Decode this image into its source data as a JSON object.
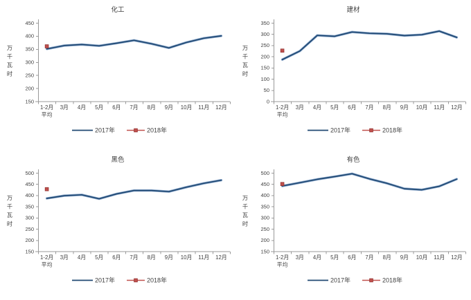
{
  "page": {
    "background": "#ffffff"
  },
  "colors": {
    "series_2017": "#1f4872",
    "series_2017_halo": "#6e92bf",
    "series_2018": "#c0504d",
    "series_2018_border": "#943634",
    "axis": "#999999",
    "text": "#3f3f3f"
  },
  "chart_data": [
    {
      "type": "line",
      "title": "化工",
      "ylabel": "万千瓦时",
      "xlabel": "",
      "grid": false,
      "legend_position": "bottom",
      "categories": [
        "1-2月",
        "3月",
        "4月",
        "5月",
        "6月",
        "7月",
        "8月",
        "9月",
        "10月",
        "11月",
        "12月"
      ],
      "first_category_line2": "平均",
      "ylim": [
        150,
        450
      ],
      "yticks": [
        450,
        400,
        350,
        300,
        250,
        200,
        150
      ],
      "series": [
        {
          "name": "2017年",
          "values": [
            350,
            363,
            367,
            362,
            372,
            383,
            370,
            354,
            375,
            391,
            400
          ]
        },
        {
          "name": "2018年",
          "values": [
            360
          ]
        }
      ]
    },
    {
      "type": "line",
      "title": "建材",
      "ylabel": "万千瓦时",
      "xlabel": "",
      "grid": false,
      "legend_position": "bottom",
      "categories": [
        "1-2月",
        "3月",
        "4月",
        "5月",
        "6月",
        "7月",
        "8月",
        "9月",
        "10月",
        "11月",
        "12月"
      ],
      "first_category_line2": "平均",
      "ylim": [
        0,
        350
      ],
      "yticks": [
        350,
        300,
        250,
        200,
        150,
        100,
        50,
        0
      ],
      "series": [
        {
          "name": "2017年",
          "values": [
            186,
            224,
            294,
            290,
            309,
            303,
            301,
            293,
            297,
            313,
            285
          ]
        },
        {
          "name": "2018年",
          "values": [
            226
          ]
        }
      ]
    },
    {
      "type": "line",
      "title": "黑色",
      "ylabel": "万千瓦时",
      "xlabel": "",
      "grid": false,
      "legend_position": "bottom",
      "categories": [
        "1-2月",
        "3月",
        "4月",
        "5月",
        "6月",
        "7月",
        "8月",
        "9月",
        "10月",
        "11月",
        "12月"
      ],
      "first_category_line2": "平均",
      "ylim": [
        150,
        500
      ],
      "yticks": [
        500,
        450,
        400,
        350,
        300,
        250,
        200,
        150
      ],
      "series": [
        {
          "name": "2017年",
          "values": [
            386,
            398,
            402,
            384,
            406,
            421,
            421,
            416,
            436,
            453,
            467
          ]
        },
        {
          "name": "2018年",
          "values": [
            427
          ]
        }
      ]
    },
    {
      "type": "line",
      "title": "有色",
      "ylabel": "万千瓦时",
      "xlabel": "",
      "grid": false,
      "legend_position": "bottom",
      "categories": [
        "1-2月",
        "3月",
        "4月",
        "5月",
        "6月",
        "7月",
        "8月",
        "9月",
        "10月",
        "11月",
        "12月"
      ],
      "first_category_line2": "平均",
      "ylim": [
        150,
        500
      ],
      "yticks": [
        500,
        450,
        400,
        350,
        300,
        250,
        200,
        150
      ],
      "series": [
        {
          "name": "2017年",
          "values": [
            441,
            456,
            471,
            483,
            496,
            473,
            453,
            429,
            424,
            440,
            472
          ]
        },
        {
          "name": "2018年",
          "values": [
            450
          ]
        }
      ]
    }
  ]
}
